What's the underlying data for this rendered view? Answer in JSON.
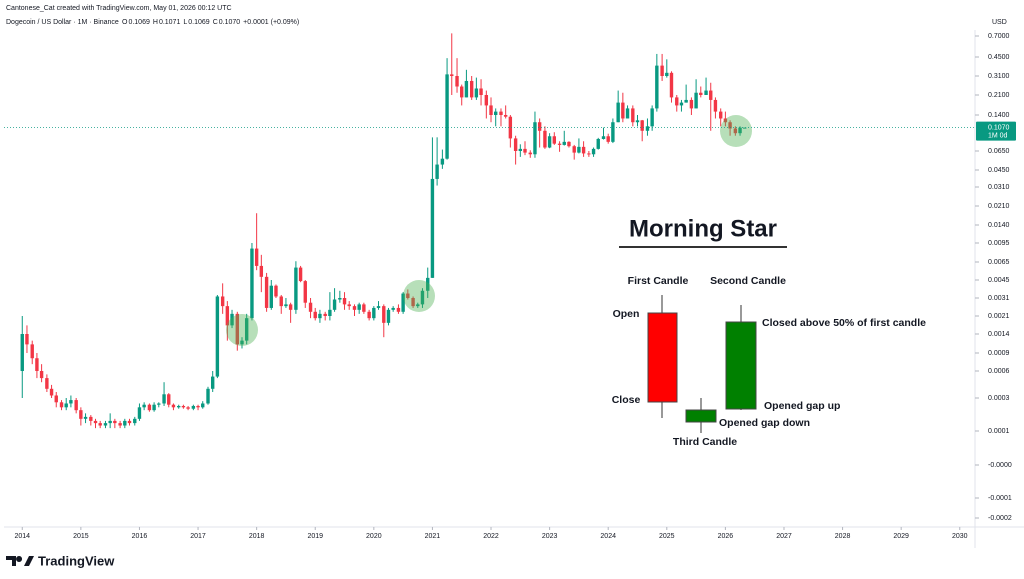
{
  "header": {
    "credit": "Cantonese_Cat created with TradingView.com, May 01, 2026 00:12 UTC",
    "symbol": "Dogecoin / US Dollar · 1M · Binance",
    "ohlc": [
      {
        "label": "O",
        "value": "0.1069"
      },
      {
        "label": "H",
        "value": "0.1071"
      },
      {
        "label": "L",
        "value": "0.1069"
      },
      {
        "label": "C",
        "value": "0.1070"
      }
    ],
    "change": "+0.0001 (+0.09%)"
  },
  "annotations": {
    "title": "Morning Star",
    "first": "First Candle",
    "second": "Second Candle",
    "open": "Open",
    "close": "Close",
    "closed_above": "Closed above 50% of first candle",
    "gap_up": "Opened gap up",
    "gap_down": "Opened gap down",
    "third": "Third Candle"
  },
  "brand": "TradingView",
  "chart_data": {
    "type": "candlestick",
    "y_unit": "USD",
    "log_scale": true,
    "up_color": "#089981",
    "down_color": "#f23645",
    "last_price": {
      "value": 0.107,
      "label": "0.1070"
    },
    "last_price_note": "1M 0d",
    "xlim": [
      2013.62,
      2030.26
    ],
    "xticks": [
      2014,
      2015,
      2016,
      2017,
      2018,
      2019,
      2020,
      2021,
      2022,
      2023,
      2024,
      2025,
      2026,
      2027,
      2028,
      2029,
      2030
    ],
    "yticks": [
      {
        "value": 0.7,
        "label": "0.7000"
      },
      {
        "value": 0.45,
        "label": "0.4500"
      },
      {
        "value": 0.31,
        "label": "0.3100"
      },
      {
        "value": 0.21,
        "label": "0.2100"
      },
      {
        "value": 0.14,
        "label": "0.1400"
      },
      {
        "value": 0.065,
        "label": "0.0650"
      },
      {
        "value": 0.045,
        "label": "0.0450"
      },
      {
        "value": 0.031,
        "label": "0.0310"
      },
      {
        "value": 0.021,
        "label": "0.0210"
      },
      {
        "value": 0.014,
        "label": "0.0140"
      },
      {
        "value": 0.0095,
        "label": "0.0095"
      },
      {
        "value": 0.0065,
        "label": "0.0065"
      },
      {
        "value": 0.0045,
        "label": "0.0045"
      },
      {
        "value": 0.0031,
        "label": "0.0031"
      },
      {
        "value": 0.0021,
        "label": "0.0021"
      },
      {
        "value": 0.0014,
        "label": "0.0014"
      },
      {
        "value": 0.0009,
        "label": "0.0009"
      },
      {
        "value": 0.0006,
        "label": "0.0006"
      },
      {
        "value": 0.0003,
        "label": "0.0003"
      },
      {
        "value": 0.0001,
        "label": "0.0001"
      },
      {
        "value": 0,
        "label": "-0.0000"
      },
      {
        "value": -0.0001,
        "label": "-0.0001"
      },
      {
        "value": -0.0002,
        "label": "-0.0002"
      }
    ],
    "x": [
      2014,
      2014.08,
      2014.17,
      2014.25,
      2014.33,
      2014.42,
      2014.5,
      2014.58,
      2014.67,
      2014.75,
      2014.83,
      2014.92,
      2015,
      2015.08,
      2015.17,
      2015.25,
      2015.33,
      2015.42,
      2015.5,
      2015.58,
      2015.67,
      2015.75,
      2015.83,
      2015.92,
      2016,
      2016.08,
      2016.17,
      2016.25,
      2016.33,
      2016.42,
      2016.5,
      2016.58,
      2016.67,
      2016.75,
      2016.83,
      2016.92,
      2017,
      2017.08,
      2017.17,
      2017.25,
      2017.33,
      2017.42,
      2017.5,
      2017.58,
      2017.67,
      2017.75,
      2017.83,
      2017.92,
      2018,
      2018.08,
      2018.17,
      2018.25,
      2018.33,
      2018.42,
      2018.5,
      2018.58,
      2018.67,
      2018.75,
      2018.83,
      2018.92,
      2019,
      2019.08,
      2019.17,
      2019.25,
      2019.33,
      2019.42,
      2019.5,
      2019.58,
      2019.67,
      2019.75,
      2019.83,
      2019.92,
      2020,
      2020.08,
      2020.17,
      2020.25,
      2020.33,
      2020.42,
      2020.5,
      2020.58,
      2020.67,
      2020.75,
      2020.83,
      2020.92,
      2021,
      2021.08,
      2021.17,
      2021.25,
      2021.33,
      2021.42,
      2021.5,
      2021.58,
      2021.67,
      2021.75,
      2021.83,
      2021.92,
      2022,
      2022.08,
      2022.17,
      2022.25,
      2022.33,
      2022.42,
      2022.5,
      2022.58,
      2022.67,
      2022.75,
      2022.83,
      2022.92,
      2023,
      2023.08,
      2023.17,
      2023.25,
      2023.33,
      2023.42,
      2023.5,
      2023.58,
      2023.67,
      2023.75,
      2023.83,
      2023.92,
      2024,
      2024.08,
      2024.17,
      2024.25,
      2024.33,
      2024.42,
      2024.5,
      2024.58,
      2024.67,
      2024.75,
      2024.83,
      2024.92,
      2025,
      2025.08,
      2025.17,
      2025.25,
      2025.33,
      2025.42,
      2025.5,
      2025.58,
      2025.67,
      2025.75,
      2025.83,
      2025.92,
      2026,
      2026.08,
      2026.17,
      2026.25,
      2026.33
    ],
    "candles": [
      [
        0.0006,
        0.0021,
        0.0003,
        0.0014
      ],
      [
        0.0014,
        0.0017,
        0.0009,
        0.0011
      ],
      [
        0.0011,
        0.0012,
        0.0007,
        0.0008
      ],
      [
        0.0008,
        0.0009,
        0.0005,
        0.0006
      ],
      [
        0.0006,
        0.0007,
        0.00045,
        0.0005
      ],
      [
        0.0005,
        0.00055,
        0.00035,
        0.00038
      ],
      [
        0.00038,
        0.00042,
        0.0003,
        0.00032
      ],
      [
        0.00032,
        0.00035,
        0.00022,
        0.00026
      ],
      [
        0.00026,
        0.00028,
        0.0002,
        0.00022
      ],
      [
        0.00022,
        0.0003,
        0.0002,
        0.00025
      ],
      [
        0.00025,
        0.00032,
        0.00022,
        0.00028
      ],
      [
        0.00028,
        0.0003,
        0.00018,
        0.0002
      ],
      [
        0.0002,
        0.00022,
        0.00012,
        0.00015
      ],
      [
        0.00015,
        0.00018,
        0.00013,
        0.00016
      ],
      [
        0.00016,
        0.00017,
        0.00012,
        0.00014
      ],
      [
        0.00014,
        0.00015,
        0.00011,
        0.00013
      ],
      [
        0.00013,
        0.00014,
        0.00011,
        0.00012
      ],
      [
        0.00012,
        0.00014,
        0.00011,
        0.00013
      ],
      [
        0.00013,
        0.00018,
        0.00011,
        0.00014
      ],
      [
        0.00014,
        0.00015,
        0.00011,
        0.00013
      ],
      [
        0.00013,
        0.00014,
        0.00011,
        0.00012
      ],
      [
        0.00012,
        0.00015,
        0.00011,
        0.00014
      ],
      [
        0.00014,
        0.00015,
        0.00012,
        0.00013
      ],
      [
        0.00013,
        0.00016,
        0.00012,
        0.00015
      ],
      [
        0.00015,
        0.00025,
        0.00014,
        0.00022
      ],
      [
        0.00022,
        0.00026,
        0.0002,
        0.00024
      ],
      [
        0.00024,
        0.00025,
        0.00019,
        0.0002
      ],
      [
        0.0002,
        0.00026,
        0.00019,
        0.00024
      ],
      [
        0.00024,
        0.00026,
        0.00022,
        0.00025
      ],
      [
        0.00025,
        0.00045,
        0.00023,
        0.00033
      ],
      [
        0.00033,
        0.00034,
        0.00022,
        0.00024
      ],
      [
        0.00024,
        0.00025,
        0.0002,
        0.00022
      ],
      [
        0.00022,
        0.00024,
        0.00021,
        0.00023
      ],
      [
        0.00023,
        0.00024,
        0.00021,
        0.00022
      ],
      [
        0.00022,
        0.00023,
        0.0002,
        0.00021
      ],
      [
        0.00021,
        0.00024,
        0.0002,
        0.00023
      ],
      [
        0.00023,
        0.00024,
        0.0002,
        0.00022
      ],
      [
        0.00022,
        0.00027,
        0.00021,
        0.00025
      ],
      [
        0.00025,
        0.0004,
        0.00024,
        0.00038
      ],
      [
        0.00038,
        0.0006,
        0.00035,
        0.00052
      ],
      [
        0.00052,
        0.0033,
        0.0005,
        0.0032
      ],
      [
        0.0032,
        0.0042,
        0.0022,
        0.0026
      ],
      [
        0.0026,
        0.0029,
        0.0012,
        0.0017
      ],
      [
        0.0017,
        0.0024,
        0.0016,
        0.0022
      ],
      [
        0.0022,
        0.0023,
        0.00095,
        0.0011
      ],
      [
        0.0011,
        0.0013,
        0.001,
        0.0012
      ],
      [
        0.0012,
        0.0022,
        0.0011,
        0.002
      ],
      [
        0.002,
        0.0095,
        0.0019,
        0.0085
      ],
      [
        0.0085,
        0.018,
        0.0055,
        0.006
      ],
      [
        0.006,
        0.0075,
        0.0035,
        0.0048
      ],
      [
        0.0048,
        0.0052,
        0.0023,
        0.0025
      ],
      [
        0.0025,
        0.0045,
        0.0024,
        0.004
      ],
      [
        0.004,
        0.0041,
        0.0031,
        0.0032
      ],
      [
        0.0032,
        0.0033,
        0.0022,
        0.0026
      ],
      [
        0.0026,
        0.0031,
        0.0025,
        0.0027
      ],
      [
        0.0027,
        0.0028,
        0.0018,
        0.0024
      ],
      [
        0.0024,
        0.0066,
        0.0022,
        0.0058
      ],
      [
        0.0058,
        0.006,
        0.0043,
        0.0044
      ],
      [
        0.0044,
        0.0045,
        0.0025,
        0.0028
      ],
      [
        0.0028,
        0.0031,
        0.002,
        0.0023
      ],
      [
        0.0023,
        0.0025,
        0.0019,
        0.002
      ],
      [
        0.002,
        0.0024,
        0.0018,
        0.0022
      ],
      [
        0.0022,
        0.0023,
        0.0019,
        0.0021
      ],
      [
        0.0021,
        0.0035,
        0.0019,
        0.0024
      ],
      [
        0.0024,
        0.0038,
        0.0023,
        0.003
      ],
      [
        0.003,
        0.0036,
        0.0028,
        0.0031
      ],
      [
        0.0031,
        0.0035,
        0.0024,
        0.0027
      ],
      [
        0.0027,
        0.0029,
        0.0024,
        0.0026
      ],
      [
        0.0026,
        0.0027,
        0.0021,
        0.0024
      ],
      [
        0.0024,
        0.0028,
        0.0022,
        0.0027
      ],
      [
        0.0027,
        0.0028,
        0.0022,
        0.0023
      ],
      [
        0.0023,
        0.0024,
        0.0019,
        0.002
      ],
      [
        0.002,
        0.0026,
        0.0019,
        0.0025
      ],
      [
        0.0025,
        0.0029,
        0.0024,
        0.0026
      ],
      [
        0.0026,
        0.0027,
        0.0013,
        0.0018
      ],
      [
        0.0018,
        0.0025,
        0.0017,
        0.0024
      ],
      [
        0.0024,
        0.0026,
        0.0023,
        0.0025
      ],
      [
        0.0025,
        0.0027,
        0.0022,
        0.0023
      ],
      [
        0.0023,
        0.0035,
        0.0022,
        0.0034
      ],
      [
        0.0034,
        0.0037,
        0.003,
        0.0031
      ],
      [
        0.0031,
        0.0032,
        0.0025,
        0.0026
      ],
      [
        0.0026,
        0.0028,
        0.0025,
        0.0027
      ],
      [
        0.0027,
        0.0038,
        0.0025,
        0.0036
      ],
      [
        0.0036,
        0.0058,
        0.0031,
        0.0047
      ],
      [
        0.0047,
        0.087,
        0.0047,
        0.037
      ],
      [
        0.037,
        0.087,
        0.032,
        0.05
      ],
      [
        0.05,
        0.067,
        0.046,
        0.056
      ],
      [
        0.056,
        0.44,
        0.055,
        0.32
      ],
      [
        0.32,
        0.74,
        0.21,
        0.31
      ],
      [
        0.31,
        0.44,
        0.22,
        0.25
      ],
      [
        0.25,
        0.26,
        0.17,
        0.2
      ],
      [
        0.2,
        0.35,
        0.2,
        0.28
      ],
      [
        0.28,
        0.31,
        0.19,
        0.2
      ],
      [
        0.2,
        0.3,
        0.19,
        0.24
      ],
      [
        0.24,
        0.29,
        0.17,
        0.21
      ],
      [
        0.21,
        0.23,
        0.13,
        0.17
      ],
      [
        0.17,
        0.2,
        0.12,
        0.14
      ],
      [
        0.14,
        0.16,
        0.11,
        0.15
      ],
      [
        0.15,
        0.16,
        0.11,
        0.14
      ],
      [
        0.14,
        0.17,
        0.13,
        0.135
      ],
      [
        0.135,
        0.14,
        0.07,
        0.085
      ],
      [
        0.085,
        0.09,
        0.05,
        0.065
      ],
      [
        0.065,
        0.075,
        0.058,
        0.068
      ],
      [
        0.068,
        0.08,
        0.06,
        0.063
      ],
      [
        0.063,
        0.066,
        0.057,
        0.061
      ],
      [
        0.061,
        0.15,
        0.057,
        0.12
      ],
      [
        0.12,
        0.13,
        0.07,
        0.1
      ],
      [
        0.1,
        0.11,
        0.068,
        0.07
      ],
      [
        0.07,
        0.095,
        0.069,
        0.089
      ],
      [
        0.089,
        0.097,
        0.074,
        0.076
      ],
      [
        0.076,
        0.08,
        0.064,
        0.074
      ],
      [
        0.074,
        0.1,
        0.073,
        0.079
      ],
      [
        0.079,
        0.08,
        0.07,
        0.072
      ],
      [
        0.072,
        0.074,
        0.055,
        0.063
      ],
      [
        0.063,
        0.085,
        0.062,
        0.071
      ],
      [
        0.071,
        0.08,
        0.058,
        0.062
      ],
      [
        0.062,
        0.065,
        0.058,
        0.061
      ],
      [
        0.061,
        0.07,
        0.058,
        0.068
      ],
      [
        0.068,
        0.086,
        0.067,
        0.084
      ],
      [
        0.084,
        0.107,
        0.083,
        0.089
      ],
      [
        0.089,
        0.094,
        0.076,
        0.079
      ],
      [
        0.079,
        0.13,
        0.077,
        0.12
      ],
      [
        0.12,
        0.23,
        0.12,
        0.18
      ],
      [
        0.18,
        0.22,
        0.12,
        0.13
      ],
      [
        0.13,
        0.17,
        0.13,
        0.16
      ],
      [
        0.16,
        0.17,
        0.11,
        0.12
      ],
      [
        0.12,
        0.14,
        0.11,
        0.125
      ],
      [
        0.125,
        0.126,
        0.08,
        0.1
      ],
      [
        0.1,
        0.13,
        0.09,
        0.11
      ],
      [
        0.11,
        0.17,
        0.1,
        0.16
      ],
      [
        0.16,
        0.48,
        0.15,
        0.38
      ],
      [
        0.38,
        0.48,
        0.28,
        0.31
      ],
      [
        0.31,
        0.43,
        0.3,
        0.33
      ],
      [
        0.33,
        0.34,
        0.18,
        0.2
      ],
      [
        0.2,
        0.21,
        0.15,
        0.17
      ],
      [
        0.17,
        0.19,
        0.15,
        0.18
      ],
      [
        0.18,
        0.26,
        0.18,
        0.19
      ],
      [
        0.19,
        0.2,
        0.14,
        0.16
      ],
      [
        0.16,
        0.29,
        0.16,
        0.22
      ],
      [
        0.22,
        0.25,
        0.2,
        0.21
      ],
      [
        0.21,
        0.3,
        0.21,
        0.23
      ],
      [
        0.23,
        0.27,
        0.1,
        0.19
      ],
      [
        0.19,
        0.2,
        0.13,
        0.15
      ],
      [
        0.15,
        0.16,
        0.11,
        0.13
      ],
      [
        0.13,
        0.15,
        0.11,
        0.12
      ],
      [
        0.12,
        0.125,
        0.09,
        0.105
      ],
      [
        0.105,
        0.11,
        0.09,
        0.095
      ],
      [
        0.095,
        0.11,
        0.09,
        0.1069
      ],
      [
        0.1069,
        0.1071,
        0.1069,
        0.107
      ]
    ]
  }
}
